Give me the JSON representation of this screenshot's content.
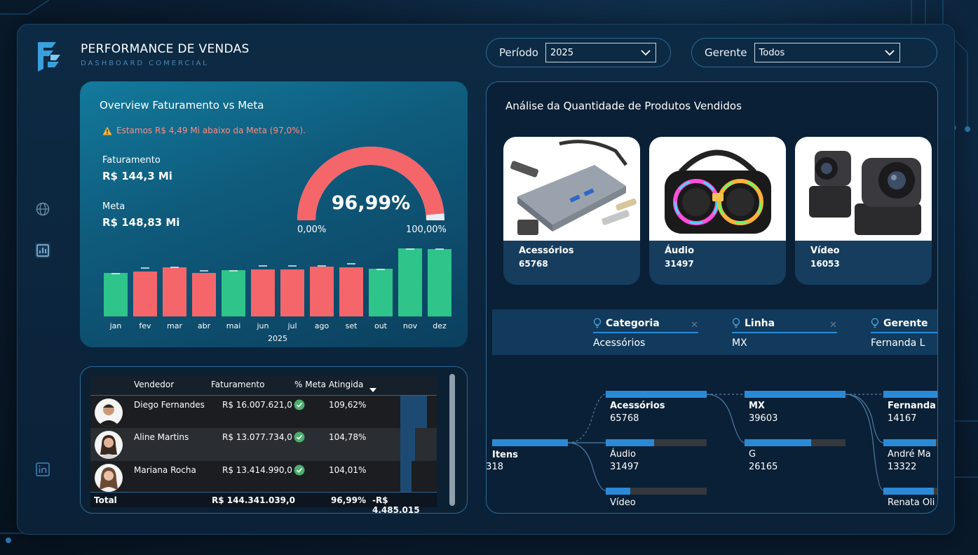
{
  "header": {
    "title": "PERFORMANCE DE VENDAS",
    "subtitle": "DASHBOARD COMERCIAL"
  },
  "filters": {
    "periodo": {
      "label": "Período",
      "value": "2025"
    },
    "gerente": {
      "label": "Gerente",
      "value": "Todos"
    }
  },
  "sidebar": {
    "icons": [
      "globe-icon",
      "report-icon",
      "linkedin-icon"
    ]
  },
  "overview": {
    "title": "Overview Faturamento vs Meta",
    "warning": "Estamos R$ 4,49 Mi abaixo da Meta (97,0%).",
    "faturamento_label": "Faturamento",
    "faturamento_value": "R$ 144,3 Mi",
    "meta_label": "Meta",
    "meta_value": "R$ 148,83 Mi",
    "gauge": {
      "value": "96,99%",
      "min": "0,00%",
      "max": "100,00%",
      "fraction": 0.9699
    },
    "colors": {
      "below": "#f4666a",
      "above": "#2ec48a",
      "target": "#e8f1f8"
    }
  },
  "chart_data": {
    "type": "bar",
    "categories": [
      "jan",
      "fev",
      "mar",
      "abr",
      "mai",
      "jun",
      "jul",
      "ago",
      "set",
      "out",
      "nov",
      "dez"
    ],
    "values": [
      62,
      64,
      70,
      62,
      66,
      67,
      67,
      71,
      70,
      68,
      97,
      96
    ],
    "targets": [
      61,
      69,
      70,
      65,
      65,
      72,
      72,
      72,
      75,
      67,
      96,
      96
    ],
    "xlabel": "2025",
    "ylim": [
      0,
      100
    ],
    "status": [
      "above",
      "below",
      "below",
      "below",
      "above",
      "below",
      "below",
      "below",
      "below",
      "above",
      "above",
      "above"
    ]
  },
  "table": {
    "columns": [
      "Vendedor",
      "Faturamento",
      "% Meta Atingida"
    ],
    "rows": [
      {
        "name": "Diego Fernandes",
        "faturamento": "R$ 16.007.621,0",
        "pct": "109,62%",
        "bar": 0.74
      },
      {
        "name": "Aline Martins",
        "faturamento": "R$ 13.077.734,0",
        "pct": "104,78%",
        "bar": 0.4
      },
      {
        "name": "Mariana Rocha",
        "faturamento": "R$ 13.414.990,0",
        "pct": "104,01%",
        "bar": 0.3
      }
    ],
    "total": {
      "label": "Total",
      "faturamento": "R$ 144.341.039,0",
      "pct": "96,99%",
      "diff": "-R$ 4.485.015"
    }
  },
  "analysis": {
    "title": "Análise da Quantidade de Produtos Vendidos",
    "products": [
      {
        "name": "Acessórios",
        "qty": "65768"
      },
      {
        "name": "Áudio",
        "qty": "31497"
      },
      {
        "name": "Vídeo",
        "qty": "16053"
      }
    ],
    "tree_headers": [
      {
        "title": "Categoria",
        "value": "Acessórios"
      },
      {
        "title": "Linha",
        "value": "MX"
      },
      {
        "title": "Gerente",
        "value": "Fernanda L"
      }
    ],
    "tree": {
      "root": {
        "label": "Itens",
        "value": "318"
      },
      "level1": [
        {
          "label": "Acessórios",
          "value": "65768",
          "fill": 1.0
        },
        {
          "label": "Áudio",
          "value": "31497",
          "fill": 0.48
        },
        {
          "label": "Vídeo",
          "value": "",
          "fill": 0.24
        }
      ],
      "level2": [
        {
          "label": "MX",
          "value": "39603",
          "fill": 1.0
        },
        {
          "label": "G",
          "value": "26165",
          "fill": 0.66
        }
      ],
      "level3": [
        {
          "label": "Fernanda",
          "value": "14167",
          "fill": 1.0
        },
        {
          "label": "André Ma",
          "value": "13322",
          "fill": 0.94
        },
        {
          "label": "Renata Oli",
          "value": "",
          "fill": 0.9
        }
      ]
    }
  }
}
